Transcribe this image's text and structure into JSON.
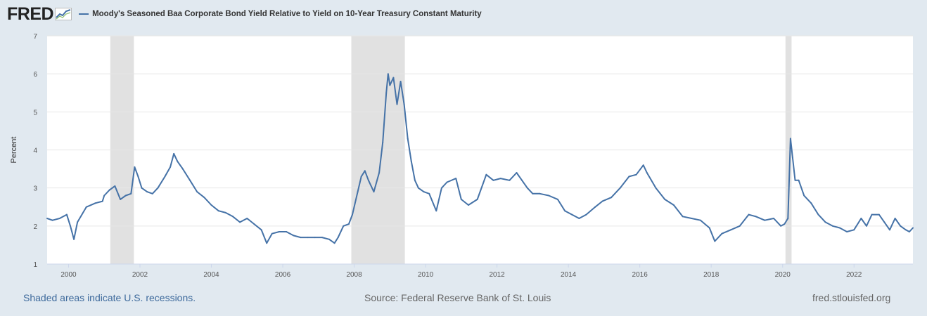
{
  "header": {
    "logo_text": "FRED",
    "series_title": "Moody's Seasoned Baa Corporate Bond Yield Relative to Yield on 10-Year Treasury Constant Maturity"
  },
  "footer": {
    "note": "Shaded areas indicate U.S. recessions.",
    "source": "Source: Federal Reserve Bank of St. Louis",
    "url": "fred.stlouisfed.org"
  },
  "colors": {
    "line": "#4572a7",
    "recession": "#e1e1e1",
    "plot_bg": "#ffffff",
    "page_bg": "#e1e9f0",
    "grid": "#e6e6e6"
  },
  "chart_data": {
    "type": "line",
    "title": "Moody's Seasoned Baa Corporate Bond Yield Relative to Yield on 10-Year Treasury Constant Maturity",
    "ylabel": "Percent",
    "xlabel": "",
    "ylim": [
      1,
      7
    ],
    "yticks": [
      1,
      2,
      3,
      4,
      5,
      6,
      7
    ],
    "xlim": [
      1999.4,
      2023.65
    ],
    "xticks": [
      2000,
      2002,
      2004,
      2006,
      2008,
      2010,
      2012,
      2014,
      2016,
      2018,
      2020,
      2022
    ],
    "grid": true,
    "recessions": [
      [
        2001.17,
        2001.83
      ],
      [
        2007.92,
        2009.42
      ],
      [
        2020.08,
        2020.25
      ]
    ],
    "series": [
      {
        "name": "Moody's Seasoned Baa Corporate Bond Yield Relative to Yield on 10-Year Treasury Constant Maturity",
        "points": [
          [
            1999.4,
            2.2
          ],
          [
            1999.55,
            2.15
          ],
          [
            1999.75,
            2.2
          ],
          [
            1999.95,
            2.3
          ],
          [
            2000.05,
            2.0
          ],
          [
            2000.15,
            1.65
          ],
          [
            2000.25,
            2.1
          ],
          [
            2000.5,
            2.5
          ],
          [
            2000.75,
            2.6
          ],
          [
            2000.95,
            2.65
          ],
          [
            2001.0,
            2.8
          ],
          [
            2001.15,
            2.95
          ],
          [
            2001.3,
            3.05
          ],
          [
            2001.45,
            2.7
          ],
          [
            2001.6,
            2.8
          ],
          [
            2001.75,
            2.85
          ],
          [
            2001.85,
            3.55
          ],
          [
            2001.95,
            3.3
          ],
          [
            2002.05,
            3.0
          ],
          [
            2002.2,
            2.9
          ],
          [
            2002.35,
            2.85
          ],
          [
            2002.5,
            3.0
          ],
          [
            2002.7,
            3.3
          ],
          [
            2002.85,
            3.55
          ],
          [
            2002.95,
            3.9
          ],
          [
            2003.05,
            3.7
          ],
          [
            2003.2,
            3.5
          ],
          [
            2003.4,
            3.2
          ],
          [
            2003.6,
            2.9
          ],
          [
            2003.8,
            2.75
          ],
          [
            2004.0,
            2.55
          ],
          [
            2004.2,
            2.4
          ],
          [
            2004.4,
            2.35
          ],
          [
            2004.6,
            2.25
          ],
          [
            2004.8,
            2.1
          ],
          [
            2005.0,
            2.2
          ],
          [
            2005.2,
            2.05
          ],
          [
            2005.4,
            1.9
          ],
          [
            2005.55,
            1.55
          ],
          [
            2005.7,
            1.8
          ],
          [
            2005.9,
            1.85
          ],
          [
            2006.1,
            1.85
          ],
          [
            2006.3,
            1.75
          ],
          [
            2006.5,
            1.7
          ],
          [
            2006.7,
            1.7
          ],
          [
            2006.9,
            1.7
          ],
          [
            2007.1,
            1.7
          ],
          [
            2007.3,
            1.65
          ],
          [
            2007.45,
            1.55
          ],
          [
            2007.55,
            1.7
          ],
          [
            2007.7,
            2.0
          ],
          [
            2007.85,
            2.05
          ],
          [
            2007.95,
            2.3
          ],
          [
            2008.1,
            2.9
          ],
          [
            2008.2,
            3.3
          ],
          [
            2008.3,
            3.45
          ],
          [
            2008.4,
            3.2
          ],
          [
            2008.55,
            2.9
          ],
          [
            2008.7,
            3.4
          ],
          [
            2008.8,
            4.2
          ],
          [
            2008.9,
            5.5
          ],
          [
            2008.95,
            6.0
          ],
          [
            2009.0,
            5.7
          ],
          [
            2009.1,
            5.9
          ],
          [
            2009.2,
            5.2
          ],
          [
            2009.3,
            5.8
          ],
          [
            2009.4,
            5.2
          ],
          [
            2009.5,
            4.3
          ],
          [
            2009.6,
            3.7
          ],
          [
            2009.7,
            3.2
          ],
          [
            2009.8,
            3.0
          ],
          [
            2009.95,
            2.9
          ],
          [
            2010.1,
            2.85
          ],
          [
            2010.3,
            2.4
          ],
          [
            2010.45,
            3.0
          ],
          [
            2010.6,
            3.15
          ],
          [
            2010.85,
            3.25
          ],
          [
            2011.0,
            2.7
          ],
          [
            2011.2,
            2.55
          ],
          [
            2011.45,
            2.7
          ],
          [
            2011.7,
            3.35
          ],
          [
            2011.9,
            3.2
          ],
          [
            2012.1,
            3.25
          ],
          [
            2012.35,
            3.2
          ],
          [
            2012.55,
            3.4
          ],
          [
            2012.7,
            3.2
          ],
          [
            2012.85,
            3.0
          ],
          [
            2013.0,
            2.85
          ],
          [
            2013.2,
            2.85
          ],
          [
            2013.45,
            2.8
          ],
          [
            2013.7,
            2.7
          ],
          [
            2013.9,
            2.4
          ],
          [
            2014.1,
            2.3
          ],
          [
            2014.3,
            2.2
          ],
          [
            2014.5,
            2.3
          ],
          [
            2014.75,
            2.5
          ],
          [
            2014.95,
            2.65
          ],
          [
            2015.2,
            2.75
          ],
          [
            2015.45,
            3.0
          ],
          [
            2015.7,
            3.3
          ],
          [
            2015.9,
            3.35
          ],
          [
            2016.1,
            3.6
          ],
          [
            2016.2,
            3.4
          ],
          [
            2016.45,
            3.0
          ],
          [
            2016.7,
            2.7
          ],
          [
            2016.95,
            2.55
          ],
          [
            2017.2,
            2.25
          ],
          [
            2017.45,
            2.2
          ],
          [
            2017.7,
            2.15
          ],
          [
            2017.95,
            1.95
          ],
          [
            2018.1,
            1.6
          ],
          [
            2018.3,
            1.8
          ],
          [
            2018.55,
            1.9
          ],
          [
            2018.8,
            2.0
          ],
          [
            2019.05,
            2.3
          ],
          [
            2019.25,
            2.25
          ],
          [
            2019.5,
            2.15
          ],
          [
            2019.75,
            2.2
          ],
          [
            2019.95,
            2.0
          ],
          [
            2020.05,
            2.05
          ],
          [
            2020.15,
            2.2
          ],
          [
            2020.22,
            4.3
          ],
          [
            2020.28,
            3.8
          ],
          [
            2020.35,
            3.2
          ],
          [
            2020.45,
            3.2
          ],
          [
            2020.6,
            2.8
          ],
          [
            2020.8,
            2.6
          ],
          [
            2021.0,
            2.3
          ],
          [
            2021.2,
            2.1
          ],
          [
            2021.4,
            2.0
          ],
          [
            2021.6,
            1.95
          ],
          [
            2021.8,
            1.85
          ],
          [
            2022.0,
            1.9
          ],
          [
            2022.2,
            2.2
          ],
          [
            2022.35,
            2.0
          ],
          [
            2022.5,
            2.3
          ],
          [
            2022.7,
            2.3
          ],
          [
            2022.85,
            2.1
          ],
          [
            2023.0,
            1.9
          ],
          [
            2023.15,
            2.2
          ],
          [
            2023.3,
            2.0
          ],
          [
            2023.45,
            1.9
          ],
          [
            2023.55,
            1.85
          ],
          [
            2023.65,
            1.95
          ]
        ]
      }
    ]
  }
}
